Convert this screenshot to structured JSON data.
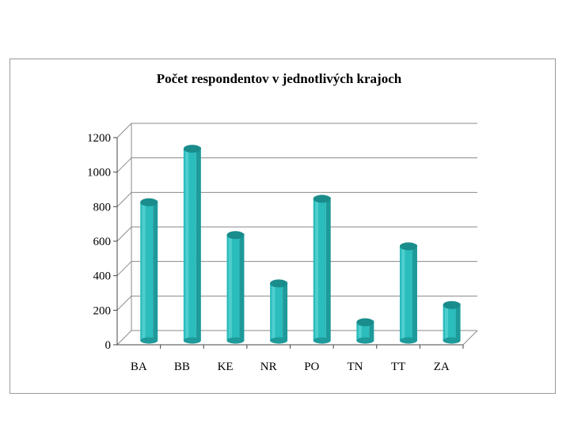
{
  "chart_data": {
    "type": "bar",
    "title": "Počet respondentov v jednotlivých krajoch",
    "xlabel": "",
    "ylabel": "",
    "categories": [
      "BA",
      "BB",
      "KE",
      "NR",
      "PO",
      "TN",
      "TT",
      "ZA"
    ],
    "values": [
      780,
      1090,
      590,
      310,
      800,
      85,
      525,
      185
    ],
    "ylim": [
      0,
      1200
    ],
    "yticks": [
      "0",
      "200",
      "400",
      "600",
      "800",
      "1000",
      "1200"
    ],
    "grid": true,
    "legend": "none",
    "colors": {
      "bar_front": "#2bbcbc",
      "bar_side": "#1e9a9a",
      "bar_top": "#1a8c8c",
      "grid": "#8a8a8a"
    }
  }
}
